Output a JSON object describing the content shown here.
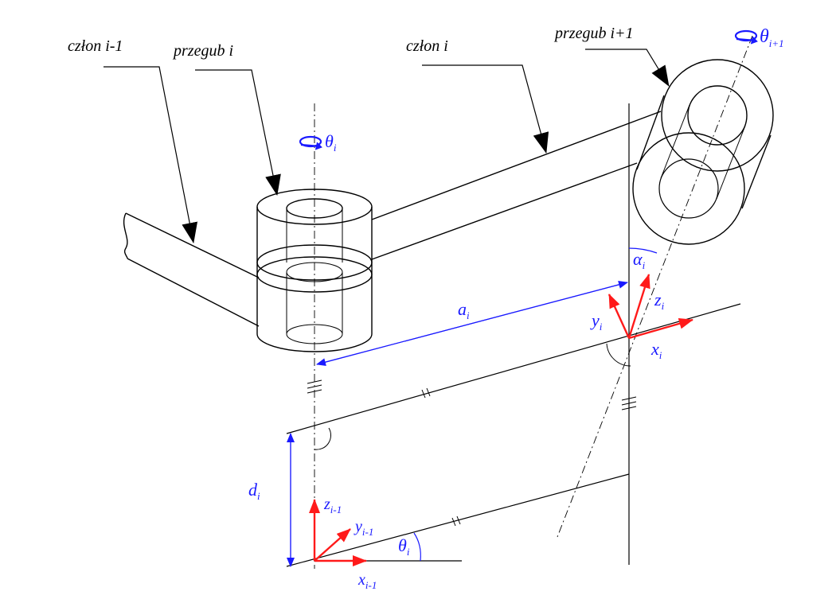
{
  "labels": {
    "czlon_prev": "człon i-1",
    "przegub_i": "przegub i",
    "czlon_i": "człon i",
    "przegub_next": "przegub i+1"
  },
  "symbols": {
    "theta": "θ",
    "alpha": "α",
    "a": "a",
    "d": "d",
    "x": "x",
    "y": "y",
    "z": "z",
    "i": "i",
    "i_minus_1": "i-1",
    "i_plus_1": "i+1"
  },
  "colors": {
    "annotation_blue": "#1a1aff",
    "axis_red": "#ff1a1a",
    "line_black": "#000000"
  }
}
